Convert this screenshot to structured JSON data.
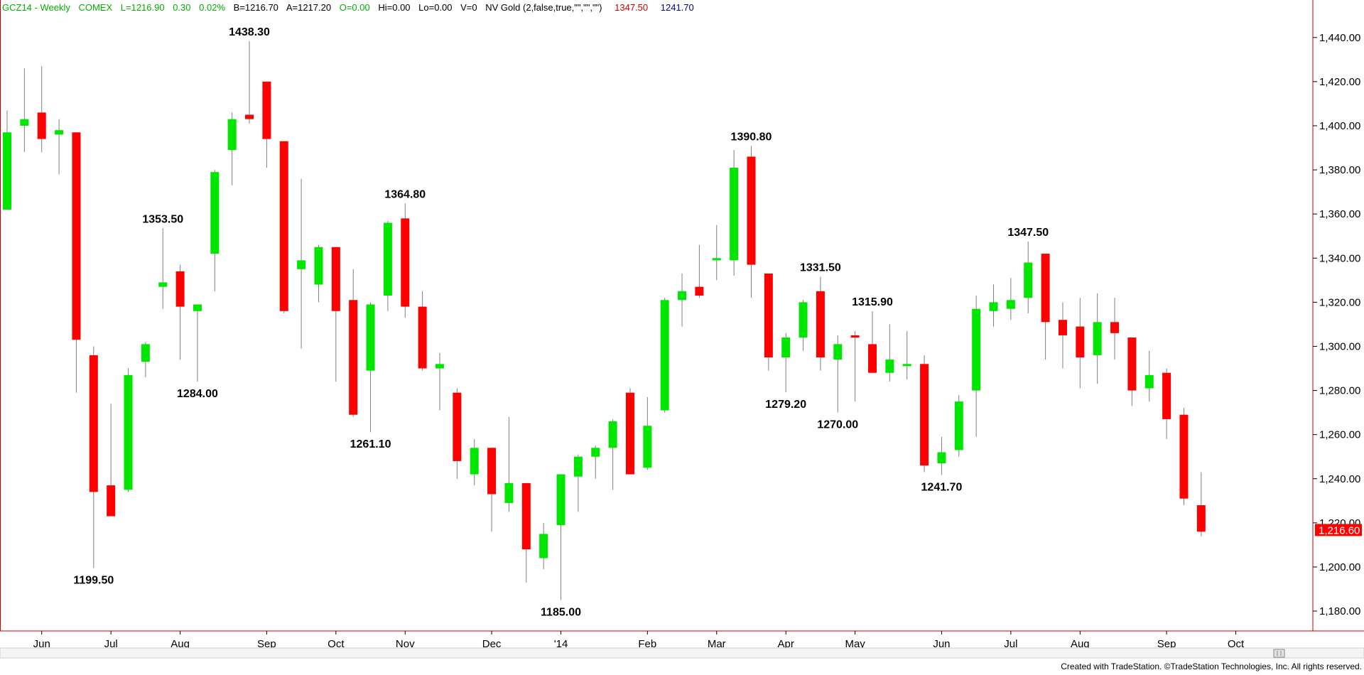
{
  "header": {
    "symbol": "GCZ14 - Weekly",
    "exchange": "COMEX",
    "last": "L=1216.90",
    "change": "0.30",
    "change_pct": "0.02%",
    "bid": "B=1216.70",
    "ask": "A=1217.20",
    "open": "O=0.00",
    "high": "Hi=0.00",
    "low": "Lo=0.00",
    "volume": "V=0",
    "indicator": "NV Gold (2,false,true,\"\",\"\",\"\")",
    "indicator_high": "1347.50",
    "indicator_low": "1241.70"
  },
  "colors": {
    "up": "#00e600",
    "down": "#ff0000",
    "wick": "#808080",
    "frame": "#cc0000",
    "price_tag": "#ff0000",
    "header_green": "#00b000",
    "header_red": "#cc0000",
    "header_blue": "#000080"
  },
  "footer": {
    "text": "Created with TradeStation. ©TradeStation Technologies, Inc. All rights reserved."
  },
  "chart_data": {
    "type": "candlestick",
    "ylim": [
      1171,
      1457
    ],
    "yticks": [
      1180,
      1200,
      1220,
      1240,
      1260,
      1280,
      1300,
      1320,
      1340,
      1360,
      1380,
      1400,
      1420,
      1440
    ],
    "ytick_labels": [
      "1,180.00",
      "1,200.00",
      "1,220.00",
      "1,240.00",
      "1,260.00",
      "1,280.00",
      "1,300.00",
      "1,320.00",
      "1,340.00",
      "1,360.00",
      "1,380.00",
      "1,400.00",
      "1,420.00",
      "1,440.00"
    ],
    "current_price": "1,216.60",
    "current_price_value": 1216.6,
    "xtick_labels": [
      {
        "label": "Jun",
        "bar": 2
      },
      {
        "label": "Jul",
        "bar": 6
      },
      {
        "label": "Aug",
        "bar": 10
      },
      {
        "label": "Sep",
        "bar": 15
      },
      {
        "label": "Oct",
        "bar": 19
      },
      {
        "label": "Nov",
        "bar": 23
      },
      {
        "label": "Dec",
        "bar": 28
      },
      {
        "label": "'14",
        "bar": 32
      },
      {
        "label": "Feb",
        "bar": 37
      },
      {
        "label": "Mar",
        "bar": 41
      },
      {
        "label": "Apr",
        "bar": 45
      },
      {
        "label": "May",
        "bar": 49
      },
      {
        "label": "Jun",
        "bar": 54
      },
      {
        "label": "Jul",
        "bar": 58
      },
      {
        "label": "Aug",
        "bar": 62
      },
      {
        "label": "Sep",
        "bar": 67
      },
      {
        "label": "Oct",
        "bar": 71
      }
    ],
    "candles": [
      {
        "o": 1362,
        "h": 1407,
        "l": 1362,
        "c": 1397
      },
      {
        "o": 1400,
        "h": 1426,
        "l": 1388,
        "c": 1403
      },
      {
        "o": 1406,
        "h": 1427,
        "l": 1388,
        "c": 1394
      },
      {
        "o": 1396,
        "h": 1403,
        "l": 1378,
        "c": 1398
      },
      {
        "o": 1397,
        "h": 1397,
        "l": 1279,
        "c": 1303
      },
      {
        "o": 1296,
        "h": 1300,
        "l": 1199.5,
        "c": 1234
      },
      {
        "o": 1237,
        "h": 1274,
        "l": 1223,
        "c": 1223
      },
      {
        "o": 1235,
        "h": 1290,
        "l": 1234,
        "c": 1287
      },
      {
        "o": 1293,
        "h": 1302,
        "l": 1286,
        "c": 1301
      },
      {
        "o": 1327,
        "h": 1353.5,
        "l": 1317,
        "c": 1329
      },
      {
        "o": 1334,
        "h": 1337,
        "l": 1294,
        "c": 1318
      },
      {
        "o": 1316,
        "h": 1319,
        "l": 1284,
        "c": 1319
      },
      {
        "o": 1342,
        "h": 1380,
        "l": 1325,
        "c": 1379
      },
      {
        "o": 1389,
        "h": 1406,
        "l": 1373,
        "c": 1403
      },
      {
        "o": 1405,
        "h": 1438.3,
        "l": 1401,
        "c": 1403
      },
      {
        "o": 1420,
        "h": 1420,
        "l": 1381,
        "c": 1394
      },
      {
        "o": 1393,
        "h": 1393,
        "l": 1315,
        "c": 1316
      },
      {
        "o": 1335,
        "h": 1376,
        "l": 1299,
        "c": 1339
      },
      {
        "o": 1328,
        "h": 1346,
        "l": 1320,
        "c": 1345
      },
      {
        "o": 1345,
        "h": 1345,
        "l": 1284,
        "c": 1316
      },
      {
        "o": 1321,
        "h": 1335,
        "l": 1268,
        "c": 1269
      },
      {
        "o": 1289,
        "h": 1320,
        "l": 1261.1,
        "c": 1319
      },
      {
        "o": 1323,
        "h": 1357,
        "l": 1316,
        "c": 1356
      },
      {
        "o": 1358,
        "h": 1364.8,
        "l": 1313,
        "c": 1318
      },
      {
        "o": 1318,
        "h": 1325,
        "l": 1289,
        "c": 1290
      },
      {
        "o": 1290,
        "h": 1297,
        "l": 1271,
        "c": 1292
      },
      {
        "o": 1279,
        "h": 1281,
        "l": 1240,
        "c": 1248
      },
      {
        "o": 1242,
        "h": 1258,
        "l": 1237,
        "c": 1254
      },
      {
        "o": 1254,
        "h": 1254,
        "l": 1216,
        "c": 1233
      },
      {
        "o": 1229,
        "h": 1268,
        "l": 1225,
        "c": 1238
      },
      {
        "o": 1238,
        "h": 1238,
        "l": 1193,
        "c": 1208
      },
      {
        "o": 1204,
        "h": 1220,
        "l": 1199,
        "c": 1215
      },
      {
        "o": 1219,
        "h": 1242,
        "l": 1185,
        "c": 1242
      },
      {
        "o": 1241,
        "h": 1251,
        "l": 1225,
        "c": 1250
      },
      {
        "o": 1250,
        "h": 1255,
        "l": 1240,
        "c": 1254
      },
      {
        "o": 1254,
        "h": 1267,
        "l": 1235,
        "c": 1266
      },
      {
        "o": 1279,
        "h": 1281,
        "l": 1242,
        "c": 1242
      },
      {
        "o": 1245,
        "h": 1277,
        "l": 1244,
        "c": 1264
      },
      {
        "o": 1271,
        "h": 1322,
        "l": 1270,
        "c": 1321
      },
      {
        "o": 1321,
        "h": 1333,
        "l": 1309,
        "c": 1325
      },
      {
        "o": 1327,
        "h": 1346,
        "l": 1322,
        "c": 1323
      },
      {
        "o": 1339,
        "h": 1355,
        "l": 1330,
        "c": 1340
      },
      {
        "o": 1339,
        "h": 1389,
        "l": 1332,
        "c": 1381
      },
      {
        "o": 1386,
        "h": 1390.8,
        "l": 1322,
        "c": 1337
      },
      {
        "o": 1333,
        "h": 1333,
        "l": 1289,
        "c": 1295
      },
      {
        "o": 1295,
        "h": 1306,
        "l": 1279.2,
        "c": 1304
      },
      {
        "o": 1304,
        "h": 1321,
        "l": 1298,
        "c": 1320
      },
      {
        "o": 1325,
        "h": 1331.5,
        "l": 1289,
        "c": 1295
      },
      {
        "o": 1294,
        "h": 1305,
        "l": 1270,
        "c": 1301
      },
      {
        "o": 1305,
        "h": 1307,
        "l": 1275,
        "c": 1304
      },
      {
        "o": 1301,
        "h": 1315.9,
        "l": 1289,
        "c": 1288
      },
      {
        "o": 1288,
        "h": 1310,
        "l": 1284,
        "c": 1294
      },
      {
        "o": 1292,
        "h": 1307,
        "l": 1285,
        "c": 1292
      },
      {
        "o": 1292,
        "h": 1296,
        "l": 1243,
        "c": 1246
      },
      {
        "o": 1247,
        "h": 1259,
        "l": 1241.7,
        "c": 1252
      },
      {
        "o": 1253,
        "h": 1278,
        "l": 1250,
        "c": 1275
      },
      {
        "o": 1280,
        "h": 1323,
        "l": 1259,
        "c": 1317
      },
      {
        "o": 1316,
        "h": 1328,
        "l": 1309,
        "c": 1320
      },
      {
        "o": 1317,
        "h": 1331,
        "l": 1312,
        "c": 1321
      },
      {
        "o": 1322,
        "h": 1347.5,
        "l": 1315,
        "c": 1338
      },
      {
        "o": 1342,
        "h": 1342,
        "l": 1294,
        "c": 1311
      },
      {
        "o": 1312,
        "h": 1320,
        "l": 1290,
        "c": 1305
      },
      {
        "o": 1309,
        "h": 1322,
        "l": 1281,
        "c": 1295
      },
      {
        "o": 1296,
        "h": 1324,
        "l": 1283,
        "c": 1311
      },
      {
        "o": 1311,
        "h": 1322,
        "l": 1294,
        "c": 1306
      },
      {
        "o": 1304,
        "h": 1304,
        "l": 1273,
        "c": 1280
      },
      {
        "o": 1281,
        "h": 1298,
        "l": 1275,
        "c": 1287
      },
      {
        "o": 1288,
        "h": 1290,
        "l": 1258,
        "c": 1267
      },
      {
        "o": 1269,
        "h": 1272,
        "l": 1228,
        "c": 1231
      },
      {
        "o": 1228,
        "h": 1243,
        "l": 1214,
        "c": 1216
      }
    ],
    "annotations": [
      {
        "text": "1438.30",
        "bar": 14,
        "value": 1438.3,
        "pos": "above"
      },
      {
        "text": "1353.50",
        "bar": 9,
        "value": 1353.5,
        "pos": "above"
      },
      {
        "text": "1199.50",
        "bar": 5,
        "value": 1199.5,
        "pos": "below"
      },
      {
        "text": "1284.00",
        "bar": 11,
        "value": 1284,
        "pos": "below"
      },
      {
        "text": "1364.80",
        "bar": 23,
        "value": 1364.8,
        "pos": "above"
      },
      {
        "text": "1261.10",
        "bar": 21,
        "value": 1261.1,
        "pos": "below"
      },
      {
        "text": "1185.00",
        "bar": 32,
        "value": 1185,
        "pos": "below"
      },
      {
        "text": "1390.80",
        "bar": 43,
        "value": 1390.8,
        "pos": "above"
      },
      {
        "text": "1331.50",
        "bar": 47,
        "value": 1331.5,
        "pos": "above"
      },
      {
        "text": "1279.20",
        "bar": 45,
        "value": 1279.2,
        "pos": "below"
      },
      {
        "text": "1270.00",
        "bar": 48,
        "value": 1270,
        "pos": "below"
      },
      {
        "text": "1315.90",
        "bar": 50,
        "value": 1315.9,
        "pos": "above"
      },
      {
        "text": "1241.70",
        "bar": 54,
        "value": 1241.7,
        "pos": "below"
      },
      {
        "text": "1347.50",
        "bar": 59,
        "value": 1347.5,
        "pos": "above"
      }
    ]
  }
}
